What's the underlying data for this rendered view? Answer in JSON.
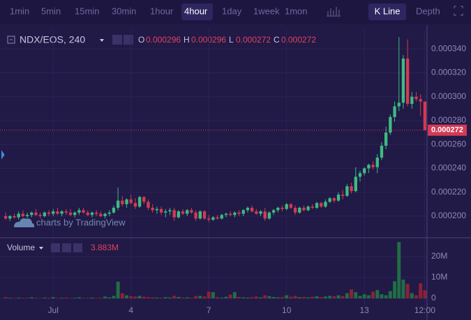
{
  "toolbar": {
    "intervals": [
      "1min",
      "5min",
      "15min",
      "30min",
      "1hour",
      "4hour",
      "1day",
      "1week",
      "1mon"
    ],
    "active": "4hour",
    "chart_style": "K Line",
    "depth": "Depth"
  },
  "legend": {
    "symbol": "NDX/EOS, 240",
    "open_label": "O",
    "open": "0.000296",
    "high_label": "H",
    "high": "0.000296",
    "low_label": "L",
    "low": "0.000272",
    "close_label": "C",
    "close": "0.000272"
  },
  "watermark": "charts by TradingView",
  "chart_data": {
    "type": "candlestick",
    "categories": [
      null,
      null,
      null,
      null,
      null,
      null,
      null,
      null,
      null,
      null,
      null,
      "Jul",
      null,
      null,
      null,
      null,
      null,
      null,
      null,
      null,
      null,
      null,
      null,
      null,
      null,
      null,
      null,
      null,
      null,
      "4",
      null,
      null,
      null,
      null,
      null,
      null,
      null,
      null,
      null,
      null,
      null,
      null,
      null,
      null,
      null,
      null,
      null,
      "7",
      null,
      null,
      null,
      null,
      null,
      null,
      null,
      null,
      null,
      null,
      null,
      null,
      null,
      null,
      null,
      null,
      null,
      "10",
      null,
      null,
      null,
      null,
      null,
      null,
      null,
      null,
      null,
      null,
      null,
      null,
      null,
      null,
      null,
      null,
      null,
      "13",
      null,
      null,
      null,
      null,
      null,
      null,
      null,
      null,
      null,
      null,
      null,
      null,
      null,
      "12:00"
    ],
    "open": [
      0.0002,
      0.000198,
      0.0002,
      0.000199,
      0.000202,
      0.0002,
      0.000201,
      0.000203,
      0.000201,
      0.0002,
      0.000203,
      0.000202,
      0.000204,
      0.000202,
      0.000204,
      0.000203,
      0.000201,
      0.000203,
      0.000205,
      0.000203,
      0.000201,
      0.000203,
      0.000202,
      0.0002,
      0.000202,
      0.000203,
      0.000207,
      0.000213,
      0.00021,
      0.000214,
      0.000211,
      0.000208,
      0.000216,
      0.000212,
      0.000207,
      0.000205,
      0.000206,
      0.000203,
      0.000204,
      0.000205,
      0.000199,
      0.000204,
      0.000202,
      0.000205,
      0.000203,
      0.000198,
      0.000204,
      0.000198,
      0.000197,
      0.000199,
      0.000198,
      0.000201,
      0.000202,
      0.000201,
      0.000203,
      0.000202,
      0.000205,
      0.000207,
      0.000204,
      0.000202,
      0.000204,
      0.000198,
      0.000203,
      0.000205,
      0.000207,
      0.000206,
      0.00021,
      0.000207,
      0.000203,
      0.000207,
      0.000205,
      0.000208,
      0.000207,
      0.000211,
      0.000208,
      0.000212,
      0.000215,
      0.000213,
      0.000218,
      0.000217,
      0.000225,
      0.000221,
      0.000233,
      0.000236,
      0.00024,
      0.000243,
      0.000241,
      0.000249,
      0.000259,
      0.00027,
      0.000283,
      0.000292,
      0.000295,
      0.000332,
      0.000294,
      0.0003,
      0.000298,
      0.000296
    ],
    "high": [
      0.000203,
      0.000201,
      0.000202,
      0.000204,
      0.000205,
      0.000203,
      0.000204,
      0.000206,
      0.000203,
      0.000204,
      0.000205,
      0.000206,
      0.000207,
      0.000205,
      0.000206,
      0.000206,
      0.000204,
      0.000207,
      0.000207,
      0.000205,
      0.000204,
      0.000205,
      0.000204,
      0.000203,
      0.000205,
      0.000209,
      0.000224,
      0.000217,
      0.000215,
      0.000218,
      0.000215,
      0.000217,
      0.000217,
      0.000214,
      0.00021,
      0.000208,
      0.000208,
      0.000206,
      0.000207,
      0.000207,
      0.000205,
      0.000206,
      0.000206,
      0.000207,
      0.000205,
      0.000205,
      0.000205,
      0.000201,
      0.0002,
      0.000201,
      0.000202,
      0.000203,
      0.000204,
      0.000204,
      0.000205,
      0.000206,
      0.000208,
      0.000209,
      0.000206,
      0.000205,
      0.000207,
      0.000204,
      0.000206,
      0.000208,
      0.000209,
      0.000211,
      0.000211,
      0.000209,
      0.000208,
      0.000209,
      0.000209,
      0.00021,
      0.000212,
      0.000212,
      0.000214,
      0.000216,
      0.000216,
      0.00022,
      0.000222,
      0.000227,
      0.000228,
      0.000241,
      0.000238,
      0.000241,
      0.000244,
      0.000246,
      0.000252,
      0.000262,
      0.000275,
      0.000285,
      0.000296,
      0.00035,
      0.000335,
      0.000348,
      0.000304,
      0.000304,
      0.000302,
      0.000296
    ],
    "low": [
      0.000197,
      0.000196,
      0.000198,
      0.000197,
      0.000199,
      0.000198,
      0.000199,
      0.0002,
      0.000198,
      0.000199,
      0.0002,
      0.0002,
      0.000201,
      0.0002,
      0.000201,
      0.0002,
      0.000199,
      0.000201,
      0.000202,
      0.0002,
      0.000199,
      0.0002,
      0.000199,
      0.000198,
      0.0002,
      0.000202,
      0.000205,
      0.000208,
      0.000207,
      0.00021,
      0.000206,
      0.000207,
      0.00021,
      0.000205,
      0.000203,
      0.000202,
      0.000201,
      0.000199,
      0.000201,
      0.000196,
      0.000198,
      0.000201,
      0.0002,
      0.000202,
      0.000196,
      0.000197,
      0.000197,
      0.000195,
      0.000196,
      0.000197,
      0.000197,
      0.000199,
      0.0002,
      0.000199,
      0.0002,
      0.0002,
      0.000203,
      0.000203,
      0.000201,
      0.0002,
      0.000196,
      0.000197,
      0.000201,
      0.000203,
      0.000204,
      0.000205,
      0.000206,
      0.000201,
      0.000202,
      0.000204,
      0.000204,
      0.000206,
      0.000206,
      0.000207,
      0.000207,
      0.000211,
      0.000211,
      0.000212,
      0.000214,
      0.000216,
      0.000219,
      0.00022,
      0.000229,
      0.000234,
      0.000236,
      0.000239,
      0.000236,
      0.000247,
      0.000256,
      0.000268,
      0.000279,
      0.000288,
      0.00029,
      0.000292,
      0.00029,
      0.000296,
      0.000284,
      0.000272
    ],
    "close": [
      0.000198,
      0.0002,
      0.000199,
      0.000202,
      0.0002,
      0.000201,
      0.000203,
      0.000201,
      0.0002,
      0.000203,
      0.000202,
      0.000204,
      0.000202,
      0.000204,
      0.000203,
      0.000201,
      0.000203,
      0.000205,
      0.000203,
      0.000201,
      0.000203,
      0.000202,
      0.0002,
      0.000202,
      0.000203,
      0.000207,
      0.000213,
      0.00021,
      0.000214,
      0.000211,
      0.000208,
      0.000216,
      0.000212,
      0.000207,
      0.000205,
      0.000206,
      0.000203,
      0.000204,
      0.000205,
      0.000199,
      0.000204,
      0.000202,
      0.000205,
      0.000203,
      0.000198,
      0.000204,
      0.000198,
      0.000197,
      0.000199,
      0.000198,
      0.000201,
      0.000202,
      0.000201,
      0.000203,
      0.000202,
      0.000205,
      0.000207,
      0.000204,
      0.000202,
      0.000204,
      0.000198,
      0.000203,
      0.000205,
      0.000207,
      0.000206,
      0.00021,
      0.000207,
      0.000203,
      0.000207,
      0.000205,
      0.000208,
      0.000207,
      0.000211,
      0.000208,
      0.000212,
      0.000215,
      0.000213,
      0.000218,
      0.000217,
      0.000225,
      0.000221,
      0.000233,
      0.000236,
      0.00024,
      0.000243,
      0.000241,
      0.000249,
      0.000259,
      0.00027,
      0.000283,
      0.000292,
      0.000295,
      0.000332,
      0.000294,
      0.0003,
      0.000298,
      0.000296,
      0.000272
    ],
    "volume": [
      600000,
      300000,
      200000,
      400000,
      300000,
      200000,
      500000,
      300000,
      200000,
      400000,
      300000,
      600000,
      200000,
      300000,
      400000,
      200000,
      300000,
      500000,
      200000,
      300000,
      400000,
      200000,
      300000,
      900000,
      500000,
      1200000,
      8000000,
      2500000,
      1500000,
      1000000,
      900000,
      1200000,
      800000,
      600000,
      500000,
      400000,
      300000,
      600000,
      500000,
      1200000,
      700000,
      400000,
      500000,
      300000,
      1100000,
      1200000,
      900000,
      3200000,
      3000000,
      600000,
      400000,
      800000,
      1800000,
      3000000,
      700000,
      500000,
      400000,
      600000,
      900000,
      500000,
      1500000,
      1100000,
      700000,
      500000,
      600000,
      1500000,
      800000,
      1200000,
      600000,
      700000,
      500000,
      800000,
      1000000,
      600000,
      900000,
      1200000,
      1000000,
      1500000,
      1100000,
      2500000,
      4300000,
      3000000,
      1200000,
      2000000,
      1500000,
      3200000,
      4000000,
      2000000,
      1500000,
      3500000,
      8200000,
      27000000,
      9000000,
      7000000,
      2500000,
      1500000,
      7200000,
      3883000
    ],
    "up_color": "#3dbb80",
    "down_color": "#d23a55",
    "volume_up_color": "#1f6e45",
    "volume_down_color": "#8d2139",
    "ylim": [
      0.0001825,
      0.0003565
    ],
    "yticks": [
      {
        "value": 0.0002,
        "label": "0.000200"
      },
      {
        "value": 0.00022,
        "label": "0.000220"
      },
      {
        "value": 0.00024,
        "label": "0.000240"
      },
      {
        "value": 0.00026,
        "label": "0.000260"
      },
      {
        "value": 0.00028,
        "label": "0.000280"
      },
      {
        "value": 0.0003,
        "label": "0.000300"
      },
      {
        "value": 0.00032,
        "label": "0.000320"
      },
      {
        "value": 0.00034,
        "label": "0.000340"
      }
    ],
    "last_price": {
      "value": 0.000272,
      "label": "0.000272"
    },
    "volume_title": "Volume",
    "volume_last_label": "3.883M",
    "y2lim": [
      -4000000,
      27700000
    ],
    "y2ticks": [
      0,
      {
        "value": 10000000,
        "label": "10M"
      },
      {
        "value": 20000000,
        "label": "20M"
      }
    ],
    "grid": true
  }
}
